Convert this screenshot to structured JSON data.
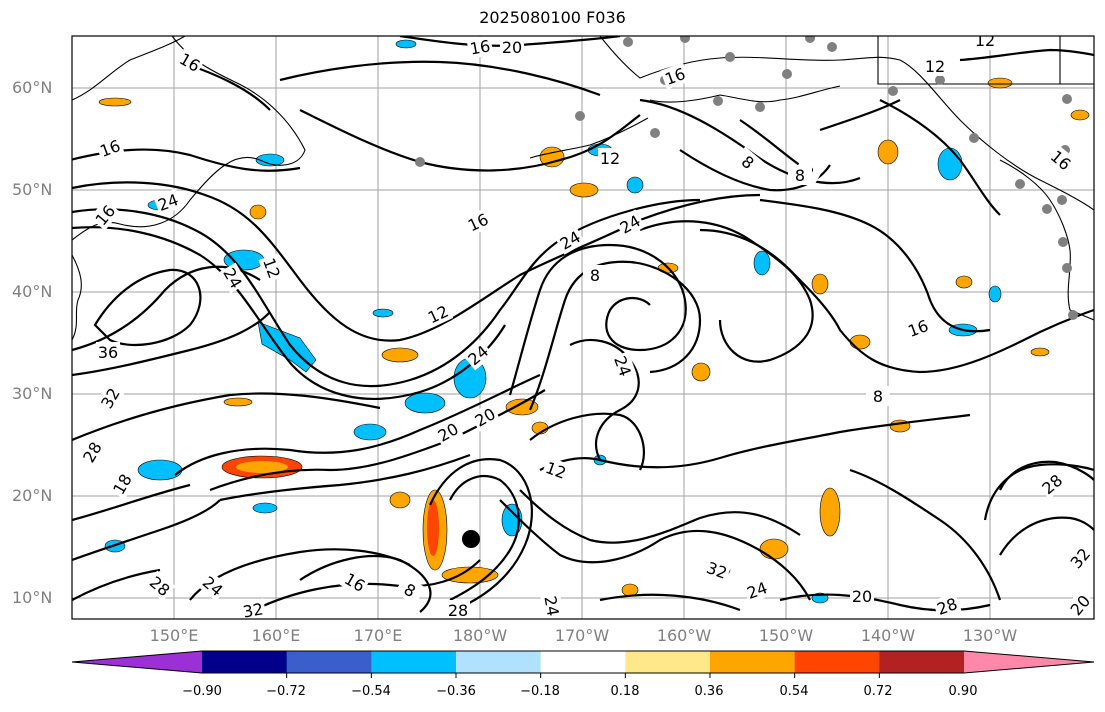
{
  "title": "2025080100 F036",
  "latitude_labels": [
    "60°N",
    "50°N",
    "40°N",
    "30°N",
    "20°N",
    "10°N"
  ],
  "longitude_labels": [
    "150°E",
    "160°E",
    "170°E",
    "180°W",
    "170°W",
    "160°W",
    "150°W",
    "140°W",
    "130°W"
  ],
  "contour_labels": [
    "16",
    "20",
    "16",
    "16",
    "12",
    "12",
    "8",
    "8",
    "16",
    "16",
    "24",
    "16",
    "24",
    "24",
    "12",
    "8",
    "12",
    "24",
    "16",
    "36",
    "32",
    "28",
    "18",
    "24",
    "20",
    "8",
    "20",
    "24",
    "12",
    "12",
    "8",
    "24",
    "28",
    "16",
    "8",
    "28",
    "32",
    "24",
    "32",
    "28",
    "20",
    "28",
    "16",
    "32",
    "24",
    "20"
  ],
  "colorbar": {
    "tick_labels": [
      "−0.90",
      "−0.72",
      "−0.54",
      "−0.36",
      "−0.18",
      "0.18",
      "0.36",
      "0.54",
      "0.72",
      "0.90"
    ],
    "colors": [
      "#9b30d6",
      "#00008b",
      "#3a5fcd",
      "#00bfff",
      "#b0e2ff",
      "#ffffff",
      "#ffe88a",
      "#ffa500",
      "#ff4500",
      "#b22222",
      "#ff88aa"
    ]
  },
  "colors": {
    "grid": "#a0a0a0",
    "contour": "#000000",
    "coast": "#000000",
    "station": "#808080",
    "storm_center": "#000000"
  }
}
